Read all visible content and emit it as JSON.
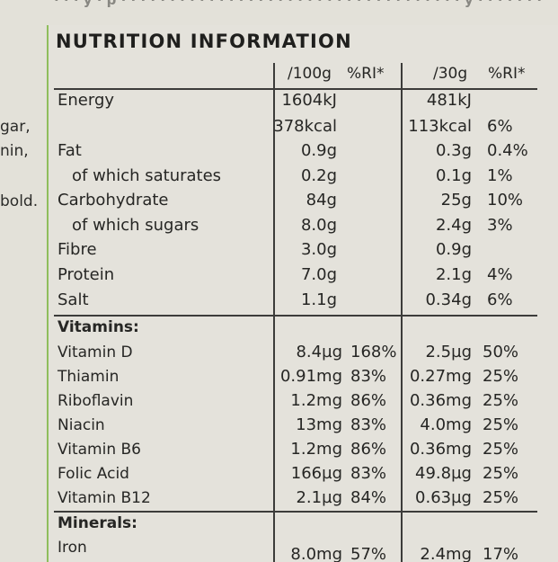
{
  "top_fragment": "· · · y · p · · · · · · · · · · ·  · · · · · · · · · · · · · · · · · · · · · · · · y  · · · · · · ·",
  "side_fragments": [
    "gar,",
    "nin,",
    "bold."
  ],
  "title": "NUTRITION INFORMATION",
  "columns": {
    "per100": "/100g",
    "ri100": "%RI*",
    "per30": "/30g",
    "ri30": "%RI*"
  },
  "nutrients": [
    {
      "name": "Energy",
      "v100": "1604kJ",
      "v30": "481kJ",
      "ri30": ""
    },
    {
      "name": "",
      "v100": "378kcal",
      "v30": "113kcal",
      "ri30": "6%"
    },
    {
      "name": "Fat",
      "v100": "0.9g",
      "v30": "0.3g",
      "ri30": "0.4%"
    },
    {
      "name": "of which saturates",
      "v100": "0.2g",
      "v30": "0.1g",
      "ri30": "1%"
    },
    {
      "name": "Carbohydrate",
      "v100": "84g",
      "v30": "25g",
      "ri30": "10%"
    },
    {
      "name": "of which sugars",
      "v100": "8.0g",
      "v30": "2.4g",
      "ri30": "3%"
    },
    {
      "name": "Fibre",
      "v100": "3.0g",
      "v30": "0.9g",
      "ri30": ""
    },
    {
      "name": "Protein",
      "v100": "7.0g",
      "v30": "2.1g",
      "ri30": "4%"
    },
    {
      "name": "Salt",
      "v100": "1.1g",
      "v30": "0.34g",
      "ri30": "6%"
    }
  ],
  "vitamins_heading": "Vitamins:",
  "vitamins": [
    {
      "name": "Vitamin D",
      "v100": "8.4µg",
      "ri100": "168%",
      "v30": "2.5µg",
      "ri30": "50%"
    },
    {
      "name": "Thiamin",
      "v100": "0.91mg",
      "ri100": "83%",
      "v30": "0.27mg",
      "ri30": "25%"
    },
    {
      "name": "Riboflavin",
      "v100": "1.2mg",
      "ri100": "86%",
      "v30": "0.36mg",
      "ri30": "25%"
    },
    {
      "name": "Niacin",
      "v100": "13mg",
      "ri100": "83%",
      "v30": "4.0mg",
      "ri30": "25%"
    },
    {
      "name": "Vitamin B6",
      "v100": "1.2mg",
      "ri100": "86%",
      "v30": "0.36mg",
      "ri30": "25%"
    },
    {
      "name": "Folic Acid",
      "v100": "166µg",
      "ri100": "83%",
      "v30": "49.8µg",
      "ri30": "25%"
    },
    {
      "name": "Vitamin B12",
      "v100": "2.1µg",
      "ri100": "84%",
      "v30": "0.63µg",
      "ri30": "25%"
    }
  ],
  "minerals_heading": "Minerals:",
  "minerals": [
    {
      "name": "Iron",
      "v100": "8.0mg",
      "ri100": "57%",
      "v30": "2.4mg",
      "ri30": "17%"
    }
  ]
}
